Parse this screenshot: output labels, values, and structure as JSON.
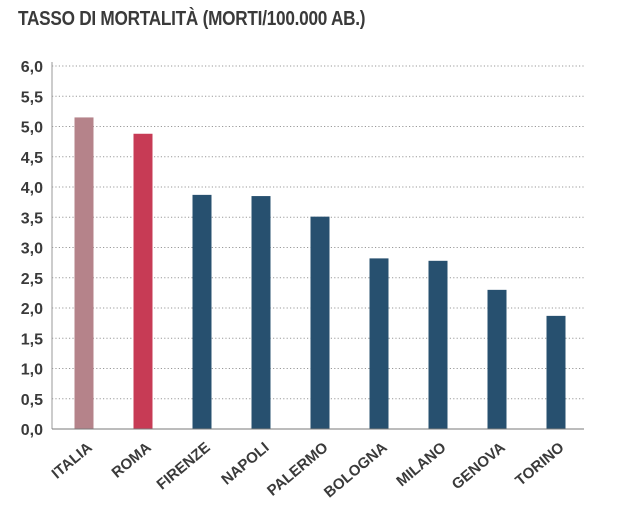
{
  "chart_data": {
    "type": "bar",
    "title": "TASSO DI MORTALITÀ (MORTI/100.000 AB.)",
    "xlabel": "",
    "ylabel": "",
    "categories": [
      "ITALIA",
      "ROMA",
      "FIRENZE",
      "NAPOLI",
      "PALERMO",
      "BOLOGNA",
      "MILANO",
      "GENOVA",
      "TORINO"
    ],
    "values": [
      5.15,
      4.88,
      3.87,
      3.85,
      3.51,
      2.82,
      2.78,
      2.3,
      1.87
    ],
    "colors": [
      "#b5838a",
      "#c73b55",
      "#27506f",
      "#27506f",
      "#27506f",
      "#27506f",
      "#27506f",
      "#27506f",
      "#27506f"
    ],
    "ylim": [
      0,
      6
    ],
    "yticks": [
      0,
      0.5,
      1,
      1.5,
      2,
      2.5,
      3,
      3.5,
      4,
      4.5,
      5,
      5.5,
      6
    ],
    "ytick_labels": [
      "0,0",
      "0,5",
      "1,0",
      "1,5",
      "2,0",
      "2,5",
      "3,0",
      "3,5",
      "4,0",
      "4,5",
      "5,0",
      "5,5",
      "6,0"
    ],
    "grid": true,
    "grid_style": "dotted",
    "legend": "none"
  }
}
